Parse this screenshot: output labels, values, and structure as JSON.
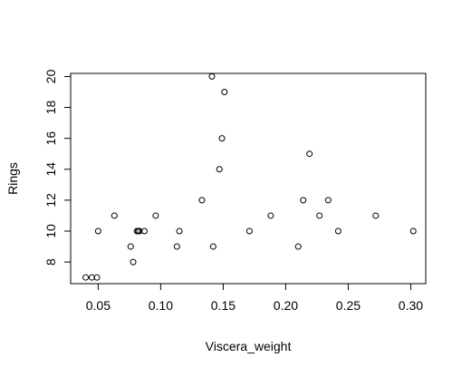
{
  "chart_data": {
    "type": "scatter",
    "title": "",
    "xlabel": "Viscera_weight",
    "ylabel": "Rings",
    "xlim": [
      0.028,
      0.312
    ],
    "ylim": [
      6.6,
      20.2
    ],
    "xticks": [
      0.05,
      0.1,
      0.15,
      0.2,
      0.25,
      0.3
    ],
    "xtick_labels": [
      "0.05",
      "0.10",
      "0.15",
      "0.20",
      "0.25",
      "0.30"
    ],
    "yticks": [
      8,
      10,
      12,
      14,
      16,
      18,
      20
    ],
    "ytick_labels": [
      "8",
      "10",
      "12",
      "14",
      "16",
      "18",
      "20"
    ],
    "grid": false,
    "legend": "none",
    "point_style": "open-circle",
    "colors": {
      "background": "#ffffff",
      "axis": "#000000",
      "points": "#000000"
    },
    "points": [
      {
        "x": 0.04,
        "y": 7
      },
      {
        "x": 0.045,
        "y": 7
      },
      {
        "x": 0.049,
        "y": 7
      },
      {
        "x": 0.05,
        "y": 10
      },
      {
        "x": 0.063,
        "y": 11
      },
      {
        "x": 0.076,
        "y": 9
      },
      {
        "x": 0.078,
        "y": 8
      },
      {
        "x": 0.081,
        "y": 10
      },
      {
        "x": 0.082,
        "y": 10
      },
      {
        "x": 0.083,
        "y": 10
      },
      {
        "x": 0.087,
        "y": 10
      },
      {
        "x": 0.096,
        "y": 11
      },
      {
        "x": 0.113,
        "y": 9
      },
      {
        "x": 0.115,
        "y": 10
      },
      {
        "x": 0.133,
        "y": 12
      },
      {
        "x": 0.141,
        "y": 20
      },
      {
        "x": 0.142,
        "y": 9
      },
      {
        "x": 0.147,
        "y": 14
      },
      {
        "x": 0.149,
        "y": 16
      },
      {
        "x": 0.151,
        "y": 19
      },
      {
        "x": 0.171,
        "y": 10
      },
      {
        "x": 0.188,
        "y": 11
      },
      {
        "x": 0.21,
        "y": 9
      },
      {
        "x": 0.214,
        "y": 12
      },
      {
        "x": 0.219,
        "y": 15
      },
      {
        "x": 0.227,
        "y": 11
      },
      {
        "x": 0.234,
        "y": 12
      },
      {
        "x": 0.242,
        "y": 10
      },
      {
        "x": 0.272,
        "y": 11
      },
      {
        "x": 0.302,
        "y": 10
      }
    ]
  }
}
